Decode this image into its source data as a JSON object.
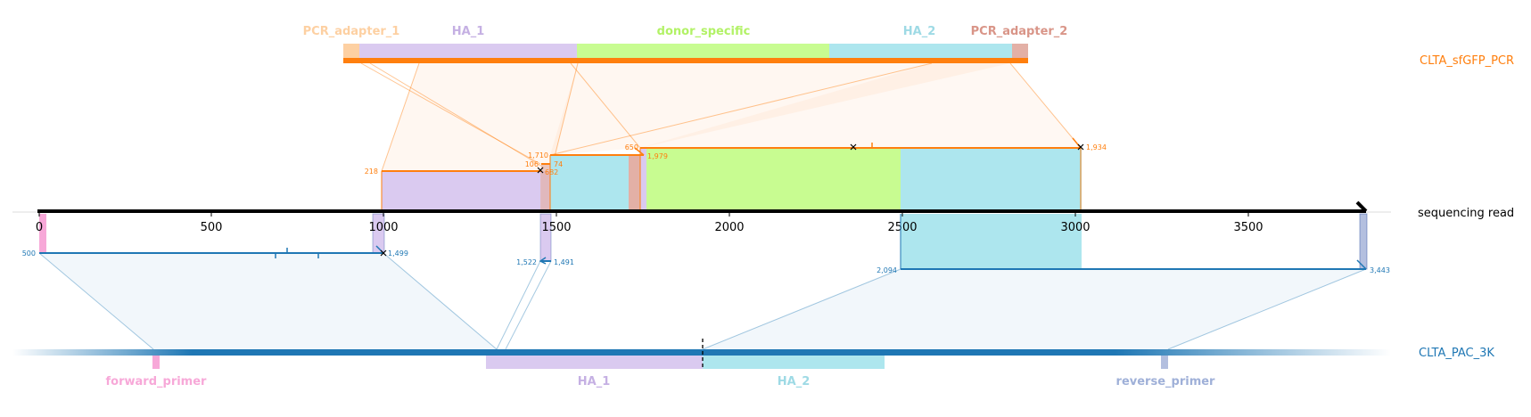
{
  "references": {
    "top": {
      "name": "CLTA_sfGFP_PCR",
      "color": "#ff7f0e"
    },
    "bottom": {
      "name": "CLTA_PAC_3K",
      "color": "#1f77b4"
    },
    "read": {
      "name": "sequencing read",
      "color": "#000000"
    }
  },
  "top_features": [
    {
      "name": "PCR_adapter_1",
      "color": "#fdd0a2"
    },
    {
      "name": "HA_1",
      "color": "#c5b0e3"
    },
    {
      "name": "donor_specific",
      "color": "#b2f266"
    },
    {
      "name": "HA_2",
      "color": "#9edae5"
    },
    {
      "name": "PCR_adapter_2",
      "color": "#d99588"
    }
  ],
  "bottom_features": [
    {
      "name": "forward_primer",
      "color": "#f7a8d8"
    },
    {
      "name": "HA_1",
      "color": "#c5b0e3"
    },
    {
      "name": "HA_2",
      "color": "#9edae5"
    },
    {
      "name": "reverse_primer",
      "color": "#9fb0d8"
    }
  ],
  "read_axis": {
    "ticks": [
      "0",
      "500",
      "1000",
      "1500",
      "2000",
      "2500",
      "3000",
      "3500"
    ]
  },
  "top_alignment_numbers": [
    "218",
    "1,710",
    "106",
    "74",
    "682",
    "650",
    "1,979",
    "1,934"
  ],
  "bottom_alignment_numbers": [
    "500",
    "1,499",
    "1,522",
    "1,491",
    "2,094",
    "3,443"
  ]
}
